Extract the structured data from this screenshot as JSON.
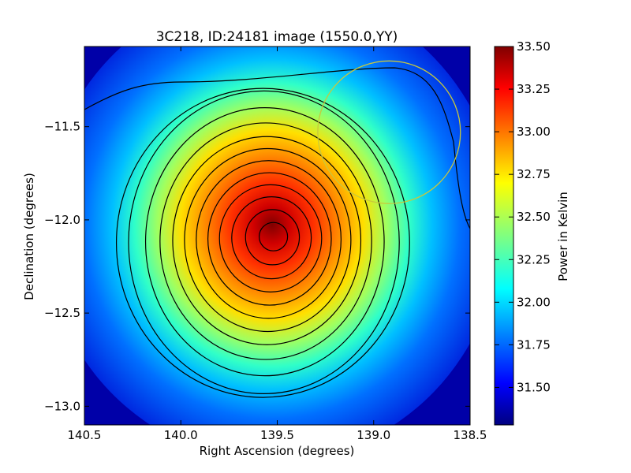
{
  "chart_data": {
    "type": "heatmap",
    "title": "3C218, ID:24181 image (1550.0,YY)",
    "xlabel": "Right Ascension (degrees)",
    "ylabel": "Declination (degrees)",
    "xlim": [
      140.5,
      138.5
    ],
    "ylim": [
      -13.1,
      -11.07
    ],
    "x_ticks": [
      "140.5",
      "140.0",
      "139.5",
      "139.0",
      "138.5"
    ],
    "y_ticks": [
      "−13.0",
      "−12.5",
      "−12.0",
      "−11.5"
    ],
    "colorbar": {
      "label": "Power in Kelvin",
      "range": [
        31.28,
        33.5
      ],
      "ticks": [
        "31.50",
        "31.75",
        "32.00",
        "32.25",
        "32.50",
        "32.75",
        "33.00",
        "33.25",
        "33.50"
      ],
      "colormap": "jet"
    },
    "peak": {
      "ra": 139.52,
      "dec": -12.09,
      "value": 33.5
    },
    "contour_color": "#000000",
    "circle": {
      "ra": 138.92,
      "dec": -11.53,
      "radius_deg": 0.37,
      "color": "#c8c83c"
    }
  }
}
